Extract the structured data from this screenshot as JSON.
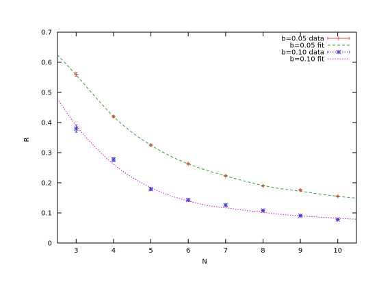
{
  "chart_data": {
    "type": "line",
    "title": "",
    "xlabel": "N",
    "ylabel": "R",
    "xlim": [
      2.5,
      10.5
    ],
    "ylim": [
      0,
      0.7
    ],
    "xticks": [
      3,
      4,
      5,
      6,
      7,
      8,
      9,
      10
    ],
    "yticks": [
      0,
      0.1,
      0.2,
      0.3,
      0.4,
      0.5,
      0.6,
      0.7
    ],
    "grid": false,
    "legend_position": "top-right",
    "series": [
      {
        "name": "b=0.05 data",
        "kind": "points",
        "marker": "plus",
        "color": "#e8403b",
        "x": [
          3,
          4,
          5,
          6,
          7,
          8,
          9,
          10
        ],
        "y": [
          0.56,
          0.42,
          0.325,
          0.263,
          0.223,
          0.19,
          0.176,
          0.155
        ],
        "err": [
          0.006,
          0.003,
          0.003,
          0.002,
          0.002,
          0.002,
          0.002,
          0.002
        ]
      },
      {
        "name": "b=0.05 fit",
        "kind": "curve",
        "style": "dashed",
        "color": "#22aa22",
        "x": [
          2.5,
          3,
          3.5,
          4,
          4.5,
          5,
          5.5,
          6,
          6.5,
          7,
          7.5,
          8,
          8.5,
          9,
          9.5,
          10,
          10.5
        ],
        "y": [
          0.625,
          0.558,
          0.487,
          0.42,
          0.367,
          0.325,
          0.29,
          0.263,
          0.241,
          0.223,
          0.206,
          0.191,
          0.18,
          0.172,
          0.163,
          0.155,
          0.149
        ]
      },
      {
        "name": "b=0.10 data",
        "kind": "points",
        "marker": "star",
        "color": "#3a3ae0",
        "x": [
          3,
          4,
          5,
          6,
          7,
          8,
          9,
          10
        ],
        "y": [
          0.38,
          0.277,
          0.179,
          0.143,
          0.126,
          0.108,
          0.091,
          0.078
        ],
        "err": [
          0.012,
          0.006,
          0.004,
          0.003,
          0.003,
          0.003,
          0.002,
          0.002
        ]
      },
      {
        "name": "b=0.10 fit",
        "kind": "curve",
        "style": "dotted",
        "color": "#e000e0",
        "x": [
          2.5,
          3,
          3.5,
          4,
          4.5,
          5,
          5.5,
          6,
          6.5,
          7,
          7.5,
          8,
          8.5,
          9,
          9.5,
          10,
          10.5
        ],
        "y": [
          0.478,
          0.39,
          0.32,
          0.262,
          0.218,
          0.184,
          0.158,
          0.14,
          0.125,
          0.117,
          0.109,
          0.102,
          0.095,
          0.09,
          0.086,
          0.082,
          0.079
        ]
      }
    ]
  }
}
